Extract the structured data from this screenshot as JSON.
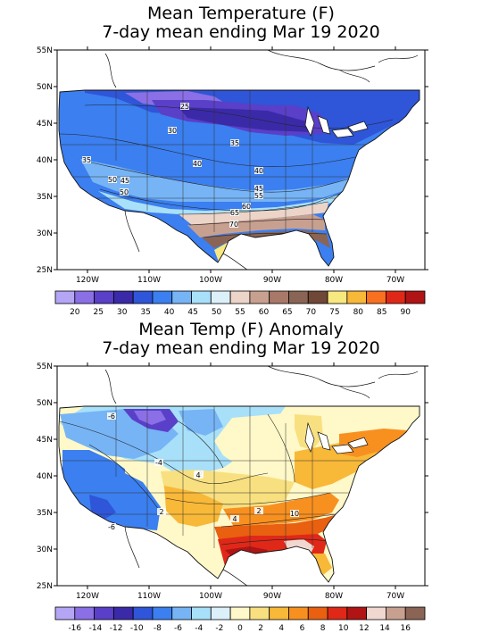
{
  "maps": [
    {
      "title_line1": "Mean Temperature (F)",
      "title_line2": "7-day mean ending Mar 19 2020",
      "lat_labels": [
        "55N",
        "50N",
        "45N",
        "40N",
        "35N",
        "30N",
        "25N"
      ],
      "lon_labels": [
        "120W",
        "110W",
        "100W",
        "90W",
        "80W",
        "70W"
      ],
      "contour_labels": [
        "25",
        "30",
        "35",
        "35",
        "40",
        "40",
        "45",
        "45",
        "50",
        "50",
        "55",
        "60",
        "65",
        "70"
      ],
      "colorbar": {
        "colors": [
          "#b4a5f5",
          "#8a6fe6",
          "#5a3fc8",
          "#3a2aa8",
          "#2f55d8",
          "#3b7ff0",
          "#76b4f5",
          "#a8e0fa",
          "#dcf0fa",
          "#ecd4c8",
          "#c8a090",
          "#a87868",
          "#8a6454",
          "#704838",
          "#f8e880",
          "#f8b838",
          "#f87020",
          "#e02818",
          "#b01414"
        ],
        "labels": [
          "20",
          "25",
          "30",
          "35",
          "40",
          "45",
          "50",
          "55",
          "60",
          "65",
          "70",
          "75",
          "80",
          "85",
          "90"
        ]
      }
    },
    {
      "title_line1": "Mean Temp (F) Anomaly",
      "title_line2": "7-day mean ending Mar 19 2020",
      "lat_labels": [
        "55N",
        "50N",
        "45N",
        "40N",
        "35N",
        "30N",
        "25N"
      ],
      "lon_labels": [
        "120W",
        "110W",
        "100W",
        "90W",
        "80W",
        "70W"
      ],
      "contour_labels": [
        "-6",
        "-4",
        "-2",
        "-6",
        "2",
        "4",
        "2",
        "4",
        "10"
      ],
      "colorbar": {
        "colors": [
          "#b4a5f5",
          "#8a6fe6",
          "#5a3fc8",
          "#3a2aa8",
          "#2f55d8",
          "#3b7ff0",
          "#76b4f5",
          "#a8e0fa",
          "#dcf0fa",
          "#fff8c8",
          "#f8e080",
          "#f8b838",
          "#f89020",
          "#e86010",
          "#e02818",
          "#b01414",
          "#f0d8d0",
          "#c8a090",
          "#8a6454"
        ],
        "labels": [
          "-16",
          "-14",
          "-12",
          "-10",
          "-8",
          "-6",
          "-4",
          "-2",
          "0",
          "2",
          "4",
          "6",
          "8",
          "10",
          "12",
          "14",
          "16"
        ]
      }
    }
  ]
}
